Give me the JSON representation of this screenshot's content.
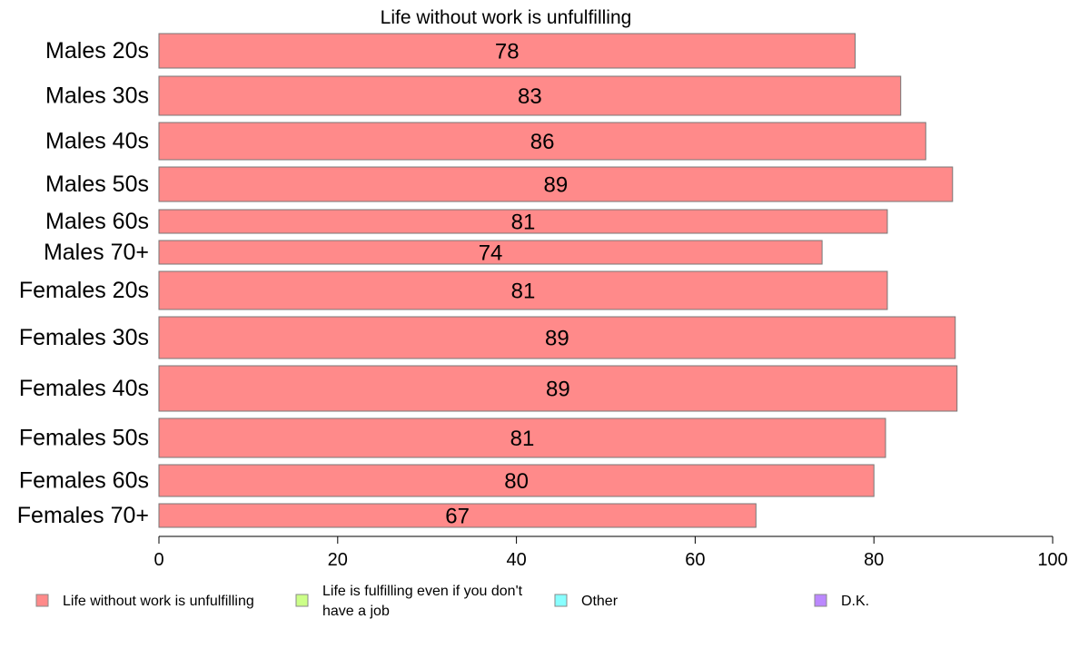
{
  "chart_data": {
    "type": "bar",
    "orientation": "horizontal",
    "title": "Life without work is unfulfilling",
    "categories": [
      "Males 20s",
      "Males 30s",
      "Males 40s",
      "Males 50s",
      "Males 60s",
      "Males 70+",
      "Females 20s",
      "Females 30s",
      "Females 40s",
      "Females 50s",
      "Females 60s",
      "Females 70+"
    ],
    "series": [
      {
        "name": "Life without work is unfulfilling",
        "color": "#ff8a8a",
        "values": [
          77.9,
          83.0,
          85.8,
          88.8,
          81.5,
          74.2,
          81.5,
          89.1,
          89.3,
          81.3,
          80.0,
          66.8
        ],
        "data_labels": [
          "78",
          "83",
          "86",
          "89",
          "81",
          "74",
          "81",
          "89",
          "89",
          "81",
          "80",
          "67"
        ]
      }
    ],
    "xlim": [
      0,
      100
    ],
    "xticks": [
      0,
      20,
      40,
      60,
      80,
      100
    ],
    "legend": {
      "placement": "bottom",
      "items": [
        {
          "label": "Life without work is unfulfilling",
          "color": "#ff8a8a"
        },
        {
          "label": "Life is fulfilling even if you don't have a job",
          "color": "#ccff88"
        },
        {
          "label": "Other",
          "color": "#88ffff"
        },
        {
          "label": "D.K.",
          "color": "#bb88ff"
        }
      ]
    },
    "grid": false
  }
}
